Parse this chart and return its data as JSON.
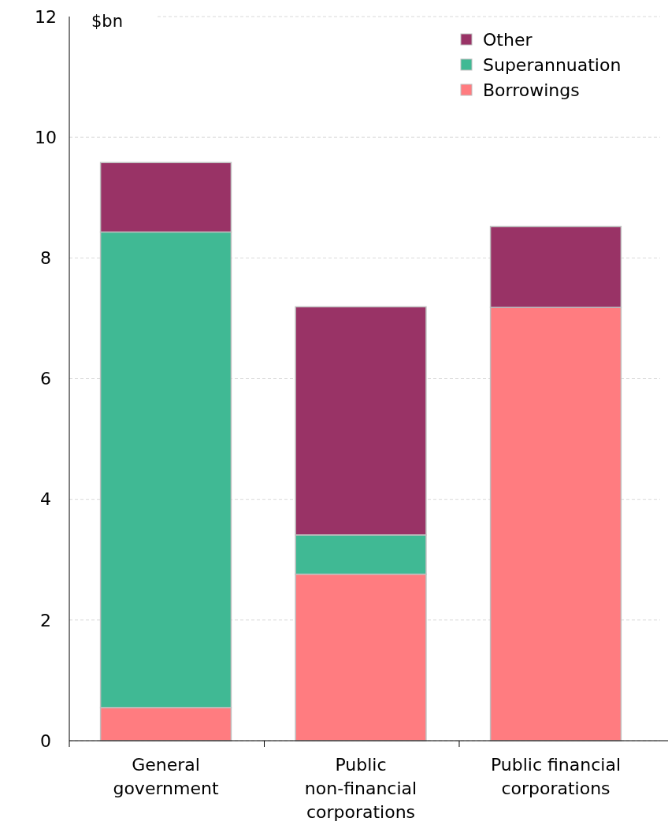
{
  "chart_data": {
    "type": "bar",
    "stacked": true,
    "ylabel": "$bn",
    "categories": [
      "General government",
      "Public non-financial corporations",
      "Public financial corporations"
    ],
    "series": [
      {
        "name": "Borrowings",
        "color": "#ff7c80",
        "values": [
          0.55,
          2.76,
          7.18
        ]
      },
      {
        "name": "Superannuation",
        "color": "#40b994",
        "values": [
          7.88,
          0.65,
          0
        ]
      },
      {
        "name": "Other",
        "color": "#993366",
        "values": [
          1.15,
          3.78,
          1.34
        ]
      }
    ],
    "ylim": [
      0,
      12
    ],
    "yticks": [
      0,
      2,
      4,
      6,
      8,
      10,
      12
    ],
    "grid": "y",
    "legend": "top right"
  }
}
